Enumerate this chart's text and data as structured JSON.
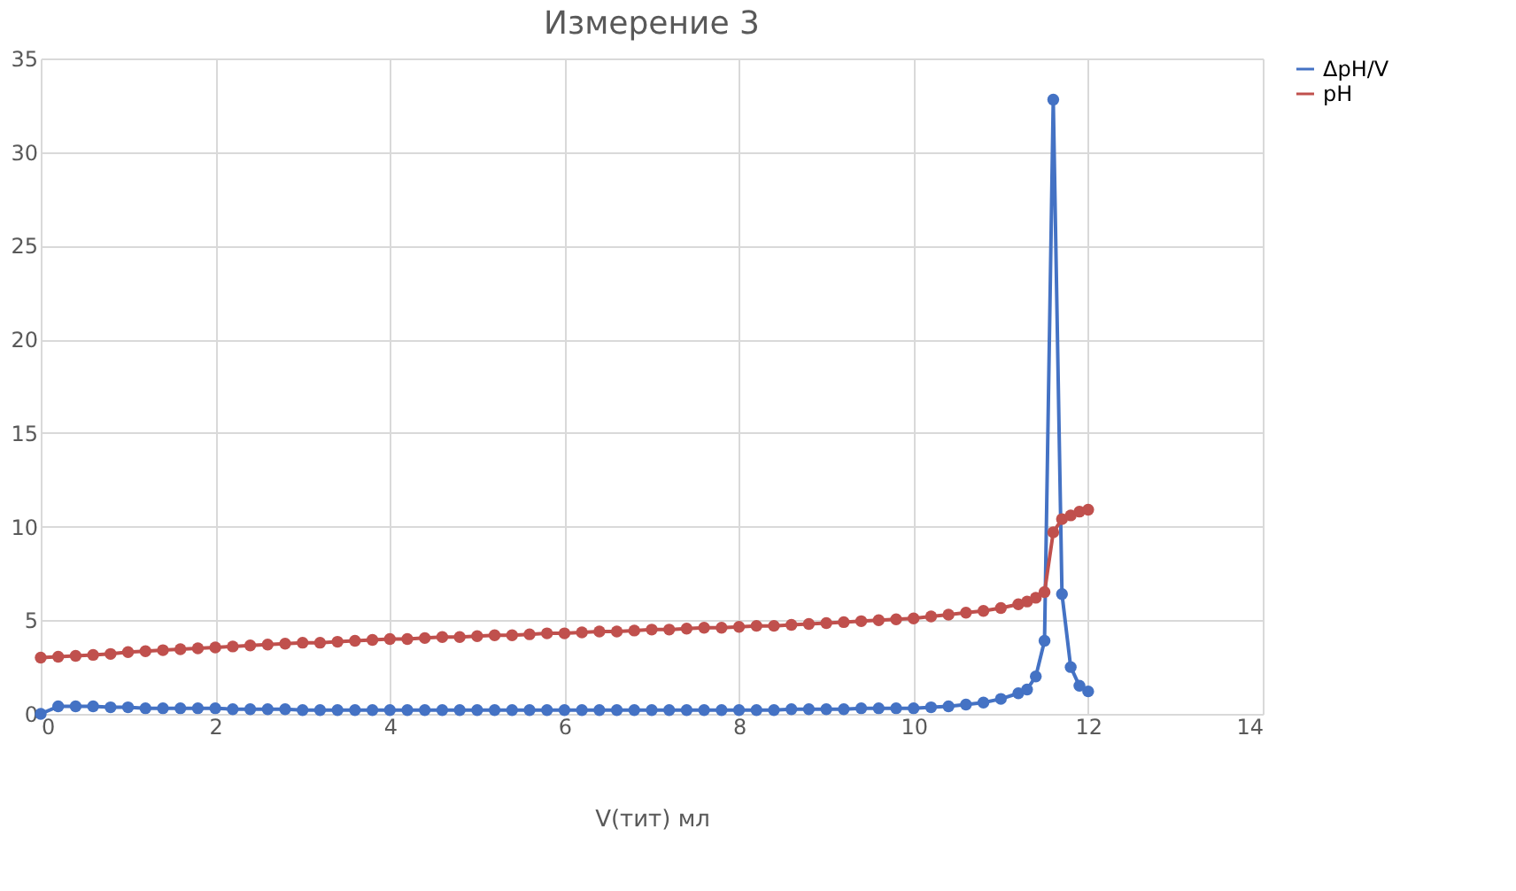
{
  "chart_data": {
    "type": "line",
    "title": "Измерение 3",
    "xlabel": "V(тит) мл",
    "x": [
      0,
      0.2,
      0.4,
      0.6,
      0.8,
      1.0,
      1.2,
      1.4,
      1.6,
      1.8,
      2.0,
      2.2,
      2.4,
      2.6,
      2.8,
      3.0,
      3.2,
      3.4,
      3.6,
      3.8,
      4.0,
      4.2,
      4.4,
      4.6,
      4.8,
      5.0,
      5.2,
      5.4,
      5.6,
      5.8,
      6.0,
      6.2,
      6.4,
      6.6,
      6.8,
      7.0,
      7.2,
      7.4,
      7.6,
      7.8,
      8.0,
      8.2,
      8.4,
      8.6,
      8.8,
      9.0,
      9.2,
      9.4,
      9.6,
      9.8,
      10.0,
      10.2,
      10.4,
      10.6,
      10.8,
      11.0,
      11.2,
      11.3,
      11.4,
      11.5,
      11.6,
      11.7,
      11.8,
      11.9,
      12.0
    ],
    "series": [
      {
        "name": "ΔpH/V",
        "color": "#4472c4",
        "values": [
          0.0,
          0.4,
          0.4,
          0.4,
          0.35,
          0.35,
          0.3,
          0.3,
          0.3,
          0.3,
          0.3,
          0.25,
          0.25,
          0.25,
          0.25,
          0.2,
          0.2,
          0.2,
          0.2,
          0.2,
          0.2,
          0.2,
          0.2,
          0.2,
          0.2,
          0.2,
          0.2,
          0.2,
          0.2,
          0.2,
          0.2,
          0.2,
          0.2,
          0.2,
          0.2,
          0.2,
          0.2,
          0.2,
          0.2,
          0.2,
          0.2,
          0.2,
          0.2,
          0.25,
          0.25,
          0.25,
          0.25,
          0.3,
          0.3,
          0.3,
          0.3,
          0.35,
          0.4,
          0.5,
          0.6,
          0.8,
          1.1,
          1.3,
          2.0,
          3.9,
          32.8,
          6.4,
          2.5,
          1.5,
          1.2
        ]
      },
      {
        "name": "pH",
        "color": "#c0504d",
        "values": [
          3.0,
          3.05,
          3.1,
          3.15,
          3.2,
          3.3,
          3.35,
          3.4,
          3.45,
          3.5,
          3.55,
          3.6,
          3.65,
          3.7,
          3.75,
          3.8,
          3.8,
          3.85,
          3.9,
          3.95,
          4.0,
          4.0,
          4.05,
          4.1,
          4.1,
          4.15,
          4.2,
          4.2,
          4.25,
          4.3,
          4.3,
          4.35,
          4.4,
          4.4,
          4.45,
          4.5,
          4.5,
          4.55,
          4.6,
          4.6,
          4.65,
          4.7,
          4.7,
          4.75,
          4.8,
          4.85,
          4.9,
          4.95,
          5.0,
          5.05,
          5.1,
          5.2,
          5.3,
          5.4,
          5.5,
          5.65,
          5.85,
          6.0,
          6.2,
          6.5,
          9.7,
          10.4,
          10.6,
          10.8,
          10.9
        ]
      }
    ],
    "xlim": [
      0,
      14
    ],
    "xticks": [
      0,
      2,
      4,
      6,
      8,
      10,
      12,
      14
    ],
    "ylim": [
      0,
      35
    ],
    "yticks": [
      0,
      5,
      10,
      15,
      20,
      25,
      30,
      35
    ],
    "grid": true,
    "legend": "right",
    "marker": "circle",
    "line_style": "solid"
  }
}
